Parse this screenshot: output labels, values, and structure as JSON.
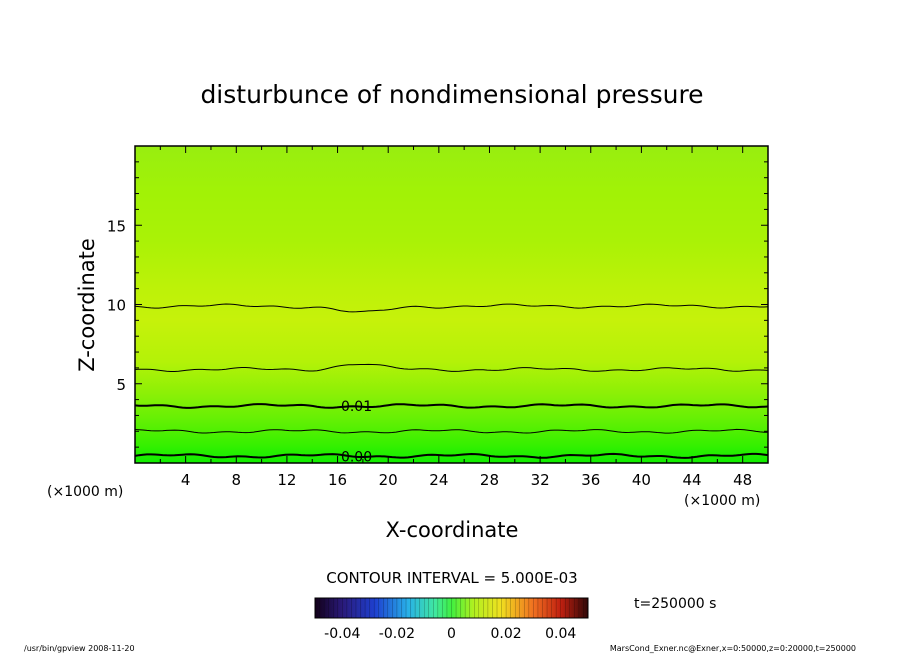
{
  "chart_data": {
    "type": "contour",
    "title": "disturbunce of nondimensional pressure",
    "xlabel": "X-coordinate",
    "ylabel": "Z-coordinate",
    "x_unit_left": "(×1000 m)",
    "x_unit_right": "(×1000 m)",
    "xlim": [
      0,
      50
    ],
    "ylim": [
      0,
      20
    ],
    "x_ticks": [
      4,
      8,
      12,
      16,
      20,
      24,
      28,
      32,
      36,
      40,
      44,
      48
    ],
    "y_ticks": [
      5,
      10,
      15
    ],
    "contour_interval_label": "CONTOUR INTERVAL = 5.000E-03",
    "time_label": "t=250000 s",
    "contour_labels": [
      {
        "text": "0.01",
        "x": 17.5,
        "z": 3.6
      },
      {
        "text": "0.00",
        "x": 17.5,
        "z": 0.4
      }
    ],
    "contours": [
      {
        "z_level": 0.45,
        "bold": true
      },
      {
        "z_level": 2.0,
        "bold": false
      },
      {
        "z_level": 3.6,
        "bold": true
      },
      {
        "z_level": 5.9,
        "bold": false
      },
      {
        "z_level": 9.9,
        "bold": false
      }
    ],
    "colorbar": {
      "tick_labels": [
        "-0.04",
        "-0.02",
        "0",
        "0.02",
        "0.04"
      ],
      "tick_values": [
        -0.04,
        -0.02,
        0,
        0.02,
        0.04
      ],
      "range": [
        -0.05,
        0.05
      ]
    },
    "colors": {
      "field_top": "#9ef206",
      "field_mid": "#c8f20a",
      "field_bottom": "#1ef000"
    }
  },
  "footer": {
    "left": "/usr/bin/gpview  2008-11-20",
    "right": "MarsCond_Exner.nc@Exner,x=0:50000,z=0:20000,t=250000"
  }
}
